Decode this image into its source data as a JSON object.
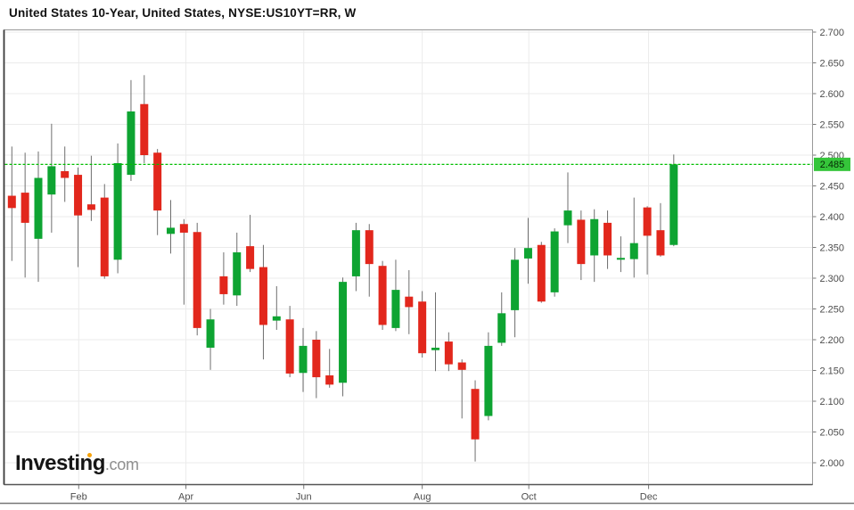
{
  "header": {
    "title": "United States 10-Year, United States, NYSE:US10YT=RR, W"
  },
  "logo": {
    "main": "Investing",
    "suffix": ".com"
  },
  "price_line": {
    "label": "2.485",
    "value": 2.485
  },
  "colors": {
    "up": "#0ea432",
    "down": "#e2271c",
    "wick": "#6e6e6e",
    "grid": "#ebebeb",
    "axis_border": "#999999",
    "axis_border_dark": "#3a3a3a",
    "axis_text": "#4d4d4d",
    "price_dotted": "#00be00",
    "price_badge_bg": "#35c53a",
    "price_badge_text": "#063306",
    "logo_dot": "#f7a30b"
  },
  "chart_data": {
    "type": "candlestick",
    "instrument": "United States 10-Year",
    "region": "United States",
    "symbol": "NYSE:US10YT=RR",
    "interval": "W",
    "current_price": 2.485,
    "y_axis": {
      "min": 2.0,
      "max": 2.7,
      "step": 0.05,
      "labels": [
        "2.700",
        "2.650",
        "2.600",
        "2.550",
        "2.500",
        "2.450",
        "2.400",
        "2.350",
        "2.300",
        "2.250",
        "2.200",
        "2.150",
        "2.100",
        "2.050",
        "2.000"
      ]
    },
    "x_axis": {
      "ticks": [
        {
          "label": "Feb",
          "week": 5.05
        },
        {
          "label": "Apr",
          "week": 13.15
        },
        {
          "label": "Jun",
          "week": 22.05
        },
        {
          "label": "Aug",
          "week": 31.0
        },
        {
          "label": "Oct",
          "week": 39.05
        },
        {
          "label": "Dec",
          "week": 48.1
        }
      ]
    },
    "candles": [
      {
        "o": 2.434,
        "h": 2.514,
        "l": 2.328,
        "c": 2.414
      },
      {
        "o": 2.439,
        "h": 2.504,
        "l": 2.301,
        "c": 2.39
      },
      {
        "o": 2.364,
        "h": 2.506,
        "l": 2.294,
        "c": 2.463
      },
      {
        "o": 2.436,
        "h": 2.551,
        "l": 2.374,
        "c": 2.482
      },
      {
        "o": 2.474,
        "h": 2.514,
        "l": 2.424,
        "c": 2.463
      },
      {
        "o": 2.468,
        "h": 2.48,
        "l": 2.318,
        "c": 2.402
      },
      {
        "o": 2.42,
        "h": 2.499,
        "l": 2.393,
        "c": 2.411
      },
      {
        "o": 2.431,
        "h": 2.453,
        "l": 2.299,
        "c": 2.303
      },
      {
        "o": 2.33,
        "h": 2.519,
        "l": 2.308,
        "c": 2.487
      },
      {
        "o": 2.468,
        "h": 2.622,
        "l": 2.458,
        "c": 2.571
      },
      {
        "o": 2.583,
        "h": 2.63,
        "l": 2.487,
        "c": 2.5
      },
      {
        "o": 2.504,
        "h": 2.51,
        "l": 2.37,
        "c": 2.41
      },
      {
        "o": 2.372,
        "h": 2.427,
        "l": 2.34,
        "c": 2.382
      },
      {
        "o": 2.388,
        "h": 2.396,
        "l": 2.257,
        "c": 2.374
      },
      {
        "o": 2.375,
        "h": 2.39,
        "l": 2.207,
        "c": 2.219
      },
      {
        "o": 2.187,
        "h": 2.25,
        "l": 2.151,
        "c": 2.233
      },
      {
        "o": 2.303,
        "h": 2.342,
        "l": 2.257,
        "c": 2.274
      },
      {
        "o": 2.272,
        "h": 2.374,
        "l": 2.255,
        "c": 2.342
      },
      {
        "o": 2.352,
        "h": 2.403,
        "l": 2.31,
        "c": 2.315
      },
      {
        "o": 2.318,
        "h": 2.354,
        "l": 2.168,
        "c": 2.224
      },
      {
        "o": 2.231,
        "h": 2.287,
        "l": 2.216,
        "c": 2.238
      },
      {
        "o": 2.233,
        "h": 2.255,
        "l": 2.139,
        "c": 2.145
      },
      {
        "o": 2.146,
        "h": 2.219,
        "l": 2.115,
        "c": 2.19
      },
      {
        "o": 2.2,
        "h": 2.214,
        "l": 2.105,
        "c": 2.139
      },
      {
        "o": 2.142,
        "h": 2.185,
        "l": 2.122,
        "c": 2.127
      },
      {
        "o": 2.13,
        "h": 2.301,
        "l": 2.108,
        "c": 2.294
      },
      {
        "o": 2.303,
        "h": 2.39,
        "l": 2.279,
        "c": 2.378
      },
      {
        "o": 2.378,
        "h": 2.388,
        "l": 2.27,
        "c": 2.323
      },
      {
        "o": 2.32,
        "h": 2.328,
        "l": 2.216,
        "c": 2.224
      },
      {
        "o": 2.219,
        "h": 2.33,
        "l": 2.214,
        "c": 2.281
      },
      {
        "o": 2.27,
        "h": 2.313,
        "l": 2.209,
        "c": 2.253
      },
      {
        "o": 2.262,
        "h": 2.279,
        "l": 2.171,
        "c": 2.178
      },
      {
        "o": 2.183,
        "h": 2.277,
        "l": 2.149,
        "c": 2.187
      },
      {
        "o": 2.197,
        "h": 2.212,
        "l": 2.149,
        "c": 2.16
      },
      {
        "o": 2.163,
        "h": 2.168,
        "l": 2.072,
        "c": 2.151
      },
      {
        "o": 2.12,
        "h": 2.134,
        "l": 2.002,
        "c": 2.038
      },
      {
        "o": 2.076,
        "h": 2.212,
        "l": 2.069,
        "c": 2.19
      },
      {
        "o": 2.195,
        "h": 2.277,
        "l": 2.19,
        "c": 2.243
      },
      {
        "o": 2.248,
        "h": 2.349,
        "l": 2.204,
        "c": 2.33
      },
      {
        "o": 2.332,
        "h": 2.398,
        "l": 2.291,
        "c": 2.349
      },
      {
        "o": 2.354,
        "h": 2.359,
        "l": 2.26,
        "c": 2.262
      },
      {
        "o": 2.277,
        "h": 2.381,
        "l": 2.27,
        "c": 2.376
      },
      {
        "o": 2.386,
        "h": 2.472,
        "l": 2.357,
        "c": 2.41
      },
      {
        "o": 2.395,
        "h": 2.41,
        "l": 2.297,
        "c": 2.323
      },
      {
        "o": 2.337,
        "h": 2.412,
        "l": 2.294,
        "c": 2.396
      },
      {
        "o": 2.39,
        "h": 2.41,
        "l": 2.315,
        "c": 2.337
      },
      {
        "o": 2.33,
        "h": 2.368,
        "l": 2.31,
        "c": 2.333
      },
      {
        "o": 2.331,
        "h": 2.431,
        "l": 2.301,
        "c": 2.357
      },
      {
        "o": 2.415,
        "h": 2.417,
        "l": 2.306,
        "c": 2.369
      },
      {
        "o": 2.378,
        "h": 2.422,
        "l": 2.335,
        "c": 2.337
      },
      {
        "o": 2.354,
        "h": 2.501,
        "l": 2.352,
        "c": 2.485
      }
    ]
  }
}
